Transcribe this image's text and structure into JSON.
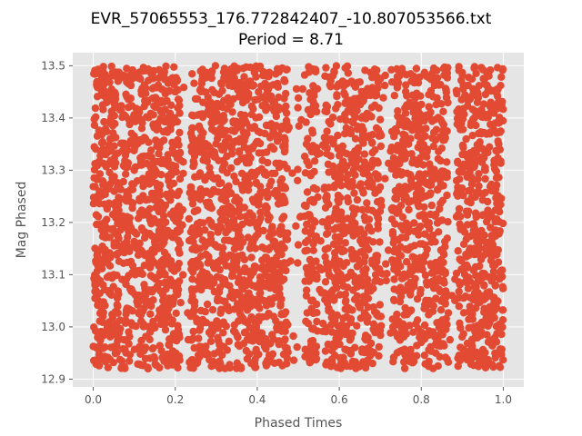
{
  "chart_data": {
    "type": "scatter",
    "title": "EVR_57065553_176.772842407_-10.807053566.txt",
    "subtitle": "Period = 8.71",
    "xlabel": "Phased Times",
    "ylabel": "Mag Phased",
    "xlim": [
      -0.05,
      1.05
    ],
    "ylim": [
      12.885,
      13.525
    ],
    "xticks": [
      0.0,
      0.2,
      0.4,
      0.6,
      0.8,
      1.0
    ],
    "xtick_labels": [
      "0.0",
      "0.2",
      "0.4",
      "0.6",
      "0.8",
      "1.0"
    ],
    "yticks": [
      12.9,
      13.0,
      13.1,
      13.2,
      13.3,
      13.4,
      13.5
    ],
    "ytick_labels": [
      "12.9",
      "13.0",
      "13.1",
      "13.2",
      "13.3",
      "13.4",
      "13.5"
    ],
    "grid": true,
    "background": "#e5e5e5",
    "marker_color": "#e24a33",
    "series": [
      {
        "x_range": [
          0.0,
          1.0
        ],
        "y_range": [
          12.92,
          13.5
        ],
        "distribution": "dense uniform band across all phases, with sparse gaps near phase 0.23, 0.49, 0.55, 0.71 and 0.87",
        "sample": [
          [
            0.02,
            13.48
          ],
          [
            0.05,
            13.1
          ],
          [
            0.08,
            12.95
          ],
          [
            0.1,
            13.3
          ],
          [
            0.13,
            13.22
          ],
          [
            0.17,
            13.05
          ],
          [
            0.2,
            13.45
          ],
          [
            0.26,
            13.15
          ],
          [
            0.31,
            12.93
          ],
          [
            0.35,
            13.38
          ],
          [
            0.4,
            13.2
          ],
          [
            0.44,
            13.02
          ],
          [
            0.52,
            13.35
          ],
          [
            0.58,
            13.12
          ],
          [
            0.63,
            13.47
          ],
          [
            0.67,
            12.98
          ],
          [
            0.74,
            13.25
          ],
          [
            0.79,
            13.42
          ],
          [
            0.83,
            13.08
          ],
          [
            0.9,
            13.33
          ],
          [
            0.94,
            12.94
          ],
          [
            0.98,
            13.18
          ]
        ]
      }
    ]
  }
}
